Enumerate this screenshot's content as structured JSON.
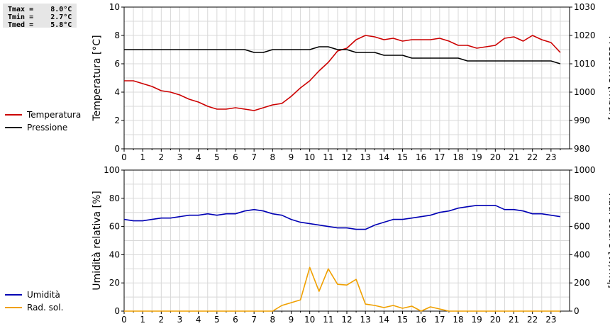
{
  "stats": [
    {
      "label": "Tmax",
      "value": "8.0°C"
    },
    {
      "label": "Tmin",
      "value": "2.7°C"
    },
    {
      "label": "Tmed",
      "value": "5.8°C"
    }
  ],
  "colors": {
    "temperature": "#cc0000",
    "pressure": "#000000",
    "humidity": "#0000b4",
    "solar": "#f0a000",
    "grid": "#d8d8d8"
  },
  "chart_data": [
    {
      "type": "line",
      "x_ticks": [
        "0",
        "1",
        "2",
        "3",
        "4",
        "5",
        "6",
        "7",
        "8",
        "9",
        "10",
        "11",
        "12",
        "13",
        "14",
        "15",
        "16",
        "17",
        "18",
        "19",
        "20",
        "21",
        "22",
        "23"
      ],
      "xlim": [
        0,
        24
      ],
      "ylabel": "Temperatura [°C]",
      "ylabel_right": "Pressione [mbar]",
      "ylim": [
        0,
        10
      ],
      "ylim_right": [
        980,
        1030
      ],
      "yticks": [
        "0",
        "2",
        "4",
        "6",
        "8",
        "10"
      ],
      "yticks_right": [
        "980",
        "990",
        "1000",
        "1010",
        "1020",
        "1030"
      ],
      "grid": true,
      "legend_placement": "left",
      "series": [
        {
          "name": "Temperatura",
          "axis": "left",
          "x": [
            0,
            0.5,
            1,
            1.5,
            2,
            2.5,
            3,
            3.5,
            4,
            4.5,
            5,
            5.5,
            6,
            6.5,
            7,
            7.5,
            8,
            8.5,
            9,
            9.5,
            10,
            10.5,
            11,
            11.5,
            12,
            12.5,
            13,
            13.5,
            14,
            14.5,
            15,
            15.5,
            16,
            16.5,
            17,
            17.5,
            18,
            18.5,
            19,
            19.5,
            20,
            20.5,
            21,
            21.5,
            22,
            22.5,
            23,
            23.5
          ],
          "values": [
            4.8,
            4.8,
            4.6,
            4.4,
            4.1,
            4.0,
            3.8,
            3.5,
            3.3,
            3.0,
            2.8,
            2.8,
            2.9,
            2.8,
            2.7,
            2.9,
            3.1,
            3.2,
            3.7,
            4.3,
            4.8,
            5.5,
            6.1,
            6.9,
            7.1,
            7.7,
            8.0,
            7.9,
            7.7,
            7.8,
            7.6,
            7.7,
            7.7,
            7.7,
            7.8,
            7.6,
            7.3,
            7.3,
            7.1,
            7.2,
            7.3,
            7.8,
            7.9,
            7.6,
            8.0,
            7.7,
            7.5,
            6.8
          ]
        },
        {
          "name": "Pressione",
          "axis": "right",
          "x": [
            0,
            0.5,
            1,
            1.5,
            2,
            2.5,
            3,
            3.5,
            4,
            4.5,
            5,
            5.5,
            6,
            6.5,
            7,
            7.5,
            8,
            8.5,
            9,
            9.5,
            10,
            10.5,
            11,
            11.5,
            12,
            12.5,
            13,
            13.5,
            14,
            14.5,
            15,
            15.5,
            16,
            16.5,
            17,
            17.5,
            18,
            18.5,
            19,
            19.5,
            20,
            20.5,
            21,
            21.5,
            22,
            22.5,
            23,
            23.5
          ],
          "values": [
            1015,
            1015,
            1015,
            1015,
            1015,
            1015,
            1015,
            1015,
            1015,
            1015,
            1015,
            1015,
            1015,
            1015,
            1014,
            1014,
            1015,
            1015,
            1015,
            1015,
            1015,
            1016,
            1016,
            1015,
            1015,
            1014,
            1014,
            1014,
            1013,
            1013,
            1013,
            1012,
            1012,
            1012,
            1012,
            1012,
            1012,
            1011,
            1011,
            1011,
            1011,
            1011,
            1011,
            1011,
            1011,
            1011,
            1011,
            1010
          ]
        }
      ]
    },
    {
      "type": "line",
      "x_ticks": [
        "0",
        "1",
        "2",
        "3",
        "4",
        "5",
        "6",
        "7",
        "8",
        "9",
        "10",
        "11",
        "12",
        "13",
        "14",
        "15",
        "16",
        "17",
        "18",
        "19",
        "20",
        "21",
        "22",
        "23"
      ],
      "xlim": [
        0,
        24
      ],
      "ylabel": "Umidità relativa [%]",
      "ylabel_right": "Rad. solare [W/mq]",
      "ylim": [
        0,
        100
      ],
      "ylim_right": [
        0,
        1000
      ],
      "yticks": [
        "0",
        "20",
        "40",
        "60",
        "80",
        "100"
      ],
      "yticks_right": [
        "0",
        "200",
        "400",
        "600",
        "800",
        "1000"
      ],
      "grid": true,
      "legend_placement": "left",
      "series": [
        {
          "name": "Umidità",
          "axis": "left",
          "x": [
            0,
            0.5,
            1,
            1.5,
            2,
            2.5,
            3,
            3.5,
            4,
            4.5,
            5,
            5.5,
            6,
            6.5,
            7,
            7.5,
            8,
            8.5,
            9,
            9.5,
            10,
            10.5,
            11,
            11.5,
            12,
            12.5,
            13,
            13.5,
            14,
            14.5,
            15,
            15.5,
            16,
            16.5,
            17,
            17.5,
            18,
            18.5,
            19,
            19.5,
            20,
            20.5,
            21,
            21.5,
            22,
            22.5,
            23,
            23.5
          ],
          "values": [
            65,
            64,
            64,
            65,
            66,
            66,
            67,
            68,
            68,
            69,
            68,
            69,
            69,
            71,
            72,
            71,
            69,
            68,
            65,
            63,
            62,
            61,
            60,
            59,
            59,
            58,
            58,
            61,
            63,
            65,
            65,
            66,
            67,
            68,
            70,
            71,
            73,
            74,
            75,
            75,
            75,
            72,
            72,
            71,
            69,
            69,
            68,
            67
          ]
        },
        {
          "name": "Rad. sol.",
          "axis": "right",
          "x": [
            0,
            0.5,
            1,
            1.5,
            2,
            2.5,
            3,
            3.5,
            4,
            4.5,
            5,
            5.5,
            6,
            6.5,
            7,
            7.5,
            8,
            8.5,
            9,
            9.5,
            10,
            10.5,
            11,
            11.5,
            12,
            12.5,
            13,
            13.5,
            14,
            14.5,
            15,
            15.5,
            16,
            16.5,
            17,
            17.5,
            18,
            18.5,
            19,
            19.5,
            20,
            20.5,
            21,
            21.5,
            22,
            22.5,
            23,
            23.5
          ],
          "values": [
            0,
            0,
            0,
            0,
            0,
            0,
            0,
            0,
            0,
            0,
            0,
            0,
            0,
            0,
            0,
            0,
            0,
            40,
            60,
            80,
            310,
            140,
            300,
            190,
            185,
            225,
            50,
            40,
            25,
            40,
            20,
            35,
            0,
            30,
            15,
            0,
            0,
            0,
            0,
            0,
            0,
            0,
            0,
            0,
            0,
            0,
            0,
            0
          ]
        }
      ]
    }
  ]
}
